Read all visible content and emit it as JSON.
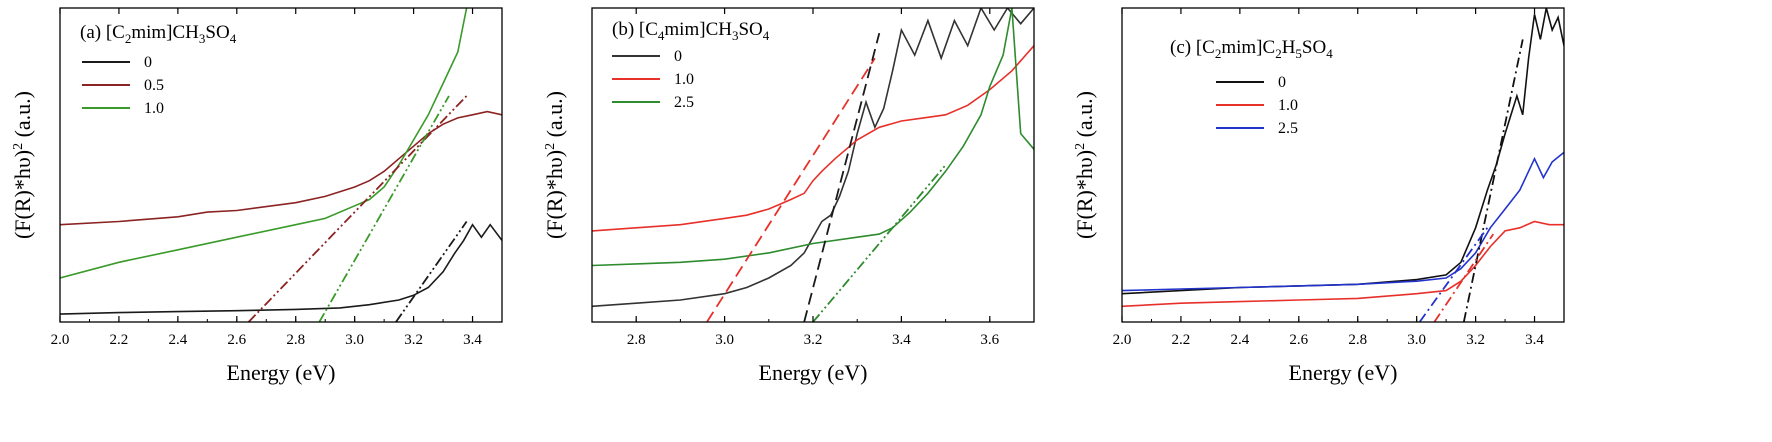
{
  "chart_data": [
    {
      "type": "line",
      "title_parts": {
        "prefix": "(a) [C",
        "s1": "2",
        "mid": "mim]CH",
        "s2": "3",
        "mid2": "SO",
        "s3": "4"
      },
      "xlabel": "Energy (eV)",
      "ylabel": {
        "main": "(F(R)*hυ)",
        "sup": "2",
        "unit": " (a.u.)"
      },
      "xlim": [
        2.0,
        3.5
      ],
      "ylim": [
        0,
        1
      ],
      "xticks": [
        "2.0",
        "2.2",
        "2.4",
        "2.6",
        "2.8",
        "3.0",
        "3.2",
        "3.4"
      ],
      "grid": false,
      "legend_position": "top-left",
      "series": [
        {
          "name": "0",
          "color": "#1a1a1a",
          "x": [
            2.0,
            2.2,
            2.4,
            2.6,
            2.8,
            2.95,
            3.05,
            3.15,
            3.2,
            3.25,
            3.3,
            3.34,
            3.37,
            3.4,
            3.43,
            3.46,
            3.5
          ],
          "y": [
            0.025,
            0.03,
            0.033,
            0.036,
            0.04,
            0.045,
            0.055,
            0.07,
            0.085,
            0.11,
            0.16,
            0.22,
            0.26,
            0.31,
            0.27,
            0.31,
            0.26
          ]
        },
        {
          "name": "0.5",
          "color": "#8b2323",
          "x": [
            2.0,
            2.2,
            2.4,
            2.5,
            2.6,
            2.8,
            2.9,
            3.0,
            3.05,
            3.1,
            3.15,
            3.2,
            3.25,
            3.3,
            3.35,
            3.4,
            3.45,
            3.5
          ],
          "y": [
            0.31,
            0.32,
            0.335,
            0.35,
            0.355,
            0.38,
            0.4,
            0.43,
            0.45,
            0.48,
            0.52,
            0.56,
            0.6,
            0.63,
            0.65,
            0.66,
            0.67,
            0.66
          ]
        },
        {
          "name": "1.0",
          "color": "#3a9a2a",
          "x": [
            2.0,
            2.2,
            2.4,
            2.6,
            2.8,
            2.9,
            3.0,
            3.05,
            3.1,
            3.15,
            3.2,
            3.25,
            3.3,
            3.35,
            3.38
          ],
          "y": [
            0.14,
            0.19,
            0.23,
            0.27,
            0.31,
            0.33,
            0.37,
            0.39,
            0.43,
            0.5,
            0.58,
            0.66,
            0.76,
            0.86,
            1.0
          ]
        }
      ],
      "fits": [
        {
          "color": "#8b2323",
          "x": [
            2.64,
            3.38
          ],
          "y": [
            0.0,
            0.72
          ],
          "dash": "dashdotdot"
        },
        {
          "color": "#3a9a2a",
          "x": [
            2.88,
            3.32
          ],
          "y": [
            0.0,
            0.72
          ],
          "dash": "dashdotdot"
        },
        {
          "color": "#1a1a1a",
          "x": [
            3.14,
            3.38
          ],
          "y": [
            0.0,
            0.32
          ],
          "dash": "dashdotdot"
        }
      ]
    },
    {
      "type": "line",
      "title_parts": {
        "prefix": "(b) [C",
        "s1": "4",
        "mid": "mim]CH",
        "s2": "3",
        "mid2": "SO",
        "s3": "4"
      },
      "xlabel": "Energy (eV)",
      "ylabel": {
        "main": "(F(R)*hυ)",
        "sup": "2",
        "unit": " (a.u.)"
      },
      "xlim": [
        2.7,
        3.7
      ],
      "ylim": [
        0,
        1
      ],
      "xticks": [
        "2.8",
        "3.0",
        "3.2",
        "3.4",
        "3.6"
      ],
      "grid": false,
      "legend_position": "top-left",
      "series": [
        {
          "name": "0",
          "color": "#333333",
          "x": [
            2.7,
            2.8,
            2.9,
            3.0,
            3.05,
            3.1,
            3.15,
            3.18,
            3.2,
            3.22,
            3.24,
            3.26,
            3.28,
            3.3,
            3.32,
            3.34,
            3.36,
            3.38,
            3.4,
            3.43,
            3.46,
            3.49,
            3.52,
            3.55,
            3.58,
            3.61,
            3.64,
            3.67,
            3.7
          ],
          "y": [
            0.05,
            0.06,
            0.07,
            0.09,
            0.11,
            0.14,
            0.18,
            0.22,
            0.27,
            0.32,
            0.34,
            0.4,
            0.48,
            0.6,
            0.7,
            0.62,
            0.68,
            0.8,
            0.93,
            0.85,
            0.96,
            0.84,
            0.96,
            0.88,
            1.0,
            0.93,
            1.0,
            0.95,
            1.0
          ]
        },
        {
          "name": "1.0",
          "color": "#e8302a",
          "x": [
            2.7,
            2.8,
            2.9,
            3.0,
            3.05,
            3.1,
            3.15,
            3.18,
            3.2,
            3.22,
            3.25,
            3.3,
            3.35,
            3.4,
            3.45,
            3.5,
            3.55,
            3.6,
            3.65,
            3.7
          ],
          "y": [
            0.29,
            0.3,
            0.31,
            0.33,
            0.34,
            0.36,
            0.39,
            0.41,
            0.45,
            0.48,
            0.52,
            0.58,
            0.62,
            0.64,
            0.65,
            0.66,
            0.69,
            0.74,
            0.8,
            0.88
          ]
        },
        {
          "name": "2.5",
          "color": "#2e8b2e",
          "x": [
            2.7,
            2.8,
            2.9,
            3.0,
            3.1,
            3.2,
            3.3,
            3.35,
            3.38,
            3.42,
            3.46,
            3.5,
            3.54,
            3.58,
            3.6,
            3.63,
            3.65,
            3.67,
            3.7
          ],
          "y": [
            0.18,
            0.185,
            0.19,
            0.2,
            0.22,
            0.25,
            0.27,
            0.28,
            0.3,
            0.35,
            0.41,
            0.48,
            0.56,
            0.66,
            0.75,
            0.85,
            1.0,
            0.6,
            0.55
          ]
        }
      ],
      "fits": [
        {
          "color": "#e8302a",
          "x": [
            2.96,
            3.34
          ],
          "y": [
            0.0,
            0.84
          ],
          "dash": "dash"
        },
        {
          "color": "#1a1a1a",
          "x": [
            3.18,
            3.35
          ],
          "y": [
            0.0,
            0.92
          ],
          "dash": "dash"
        },
        {
          "color": "#2e8b2e",
          "x": [
            3.2,
            3.5
          ],
          "y": [
            0.0,
            0.5
          ],
          "dash": "dashdotdot"
        }
      ]
    },
    {
      "type": "line",
      "title_parts": {
        "prefix": "(c) [C",
        "s1": "2",
        "mid": "mim]C",
        "s2": "2",
        "mid2": "H",
        "s3": "5",
        "mid3": "SO",
        "s4": "4"
      },
      "xlabel": "Energy (eV)",
      "ylabel": {
        "main": "(F(R)*hυ)",
        "sup": "2",
        "unit": " (a.u.)"
      },
      "xlim": [
        2.0,
        3.5
      ],
      "ylim": [
        0,
        1
      ],
      "xticks": [
        "2.0",
        "2.2",
        "2.4",
        "2.6",
        "2.8",
        "3.0",
        "3.2",
        "3.4"
      ],
      "grid": false,
      "legend_position": "top-left",
      "series": [
        {
          "name": "0",
          "color": "#111111",
          "x": [
            2.0,
            2.2,
            2.4,
            2.6,
            2.8,
            3.0,
            3.1,
            3.15,
            3.2,
            3.24,
            3.27,
            3.3,
            3.32,
            3.34,
            3.36,
            3.38,
            3.4,
            3.42,
            3.44,
            3.46,
            3.48,
            3.5
          ],
          "y": [
            0.09,
            0.1,
            0.11,
            0.115,
            0.12,
            0.135,
            0.15,
            0.19,
            0.3,
            0.42,
            0.5,
            0.6,
            0.66,
            0.72,
            0.66,
            0.84,
            0.98,
            0.9,
            1.0,
            0.93,
            0.97,
            0.88
          ]
        },
        {
          "name": "1.0",
          "color": "#e8302a",
          "x": [
            2.0,
            2.2,
            2.4,
            2.6,
            2.8,
            3.0,
            3.1,
            3.15,
            3.2,
            3.25,
            3.3,
            3.35,
            3.4,
            3.45,
            3.5
          ],
          "y": [
            0.05,
            0.06,
            0.065,
            0.07,
            0.075,
            0.09,
            0.1,
            0.13,
            0.18,
            0.24,
            0.29,
            0.3,
            0.32,
            0.31,
            0.31
          ]
        },
        {
          "name": "2.5",
          "color": "#2233cc",
          "x": [
            2.0,
            2.2,
            2.4,
            2.6,
            2.8,
            3.0,
            3.1,
            3.15,
            3.2,
            3.25,
            3.3,
            3.35,
            3.38,
            3.4,
            3.43,
            3.46,
            3.5
          ],
          "y": [
            0.1,
            0.105,
            0.11,
            0.115,
            0.12,
            0.13,
            0.14,
            0.17,
            0.22,
            0.3,
            0.36,
            0.42,
            0.48,
            0.52,
            0.46,
            0.51,
            0.54
          ]
        }
      ],
      "fits": [
        {
          "color": "#111111",
          "x": [
            3.16,
            3.36
          ],
          "y": [
            0.0,
            0.9
          ],
          "dash": "dashdot"
        },
        {
          "color": "#e8302a",
          "x": [
            3.06,
            3.26
          ],
          "y": [
            0.0,
            0.28
          ],
          "dash": "dashdot"
        },
        {
          "color": "#2233cc",
          "x": [
            3.01,
            3.24
          ],
          "y": [
            0.0,
            0.3
          ],
          "dash": "dashdot"
        }
      ]
    }
  ]
}
